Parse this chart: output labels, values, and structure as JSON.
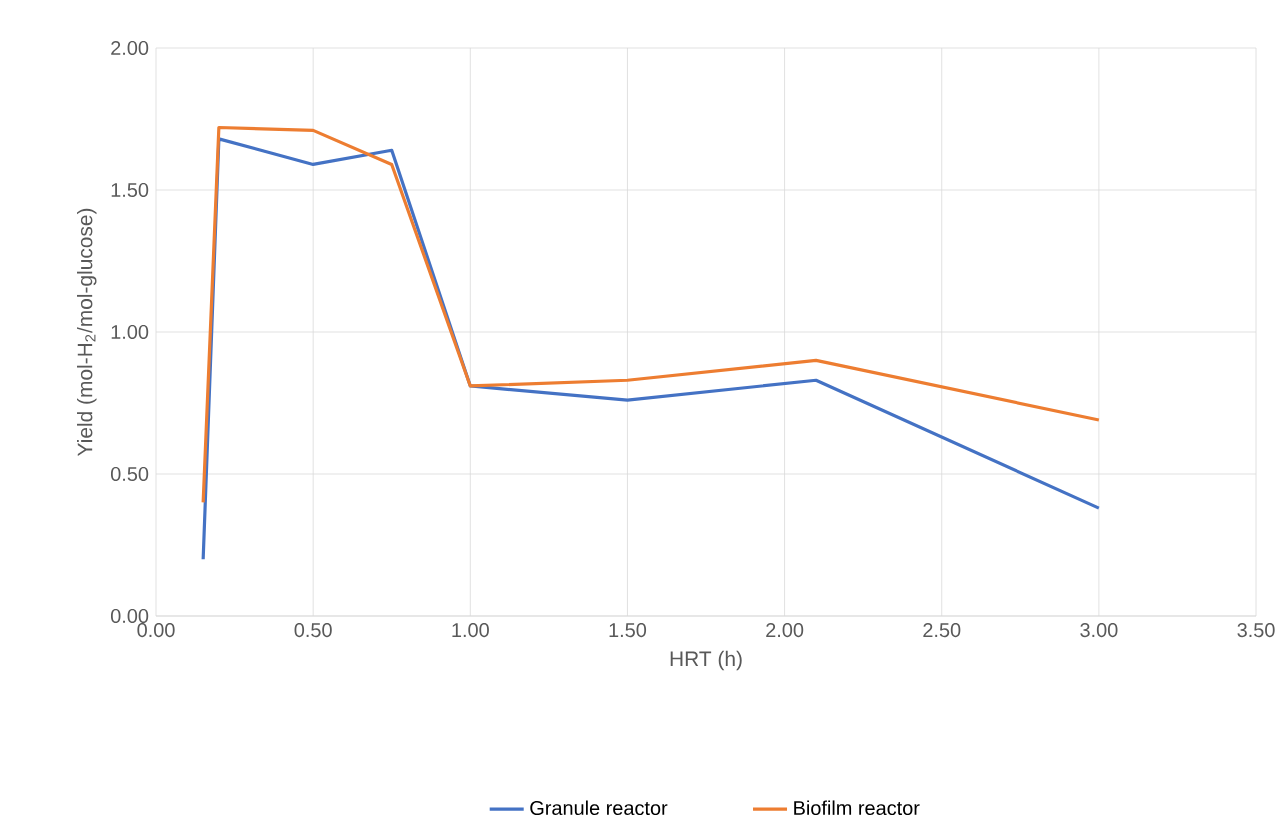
{
  "chart_data": {
    "type": "line",
    "xlabel": "HRT (h)",
    "ylabel": "Yield (mol-H$_{2}$/mol-glucose)",
    "xlim": [
      0,
      3.5
    ],
    "ylim": [
      0,
      2
    ],
    "xticks": [
      {
        "value": 0,
        "label": "0.00"
      },
      {
        "value": 0.5,
        "label": "0.50"
      },
      {
        "value": 1,
        "label": "1.00"
      },
      {
        "value": 1.5,
        "label": "1.50"
      },
      {
        "value": 2,
        "label": "2.00"
      },
      {
        "value": 2.5,
        "label": "2.50"
      },
      {
        "value": 3,
        "label": "3.00"
      },
      {
        "value": 3.5,
        "label": "3.50"
      }
    ],
    "yticks": [
      {
        "value": 0,
        "label": "0.00"
      },
      {
        "value": 0.5,
        "label": "0.50"
      },
      {
        "value": 1,
        "label": "1.00"
      },
      {
        "value": 1.5,
        "label": "1.50"
      },
      {
        "value": 2,
        "label": "2.00"
      }
    ],
    "grid": true,
    "legend": "bottom",
    "marker": "none",
    "line_style": "solid",
    "series": [
      {
        "name": "Granule reactor",
        "color": "#4472c4",
        "x": [
          0.15,
          0.2,
          0.5,
          0.75,
          1.0,
          1.5,
          2.1,
          3.0
        ],
        "values": [
          0.2,
          1.68,
          1.59,
          1.64,
          0.81,
          0.76,
          0.83,
          0.38
        ]
      },
      {
        "name": "Biofilm reactor",
        "color": "#ed7d31",
        "x": [
          0.15,
          0.2,
          0.5,
          0.75,
          1.0,
          1.5,
          2.1,
          3.0
        ],
        "values": [
          0.4,
          1.72,
          1.71,
          1.59,
          0.81,
          0.83,
          0.9,
          0.69
        ]
      }
    ]
  }
}
